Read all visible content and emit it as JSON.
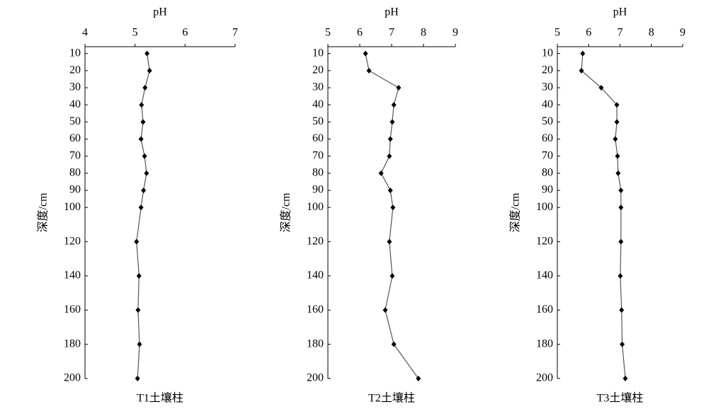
{
  "chart_data": [
    {
      "type": "line",
      "title": "T1土壤柱",
      "x_label": "pH",
      "y_label": "深度/cm",
      "categories": [
        10,
        20,
        30,
        40,
        50,
        60,
        70,
        80,
        90,
        100,
        120,
        140,
        160,
        180,
        200
      ],
      "values": [
        5.24,
        5.29,
        5.2,
        5.13,
        5.16,
        5.12,
        5.19,
        5.23,
        5.17,
        5.12,
        5.03,
        5.08,
        5.06,
        5.09,
        5.05
      ],
      "color": "#555555",
      "marker_color": "#000000",
      "xlim": [
        4,
        7
      ],
      "xticks": [
        4,
        5,
        6,
        7
      ],
      "ylim": [
        200,
        6
      ],
      "yticks": [
        10,
        20,
        30,
        40,
        50,
        60,
        70,
        80,
        90,
        100,
        120,
        140,
        160,
        180,
        200
      ]
    },
    {
      "type": "line",
      "title": "T2土壤柱",
      "x_label": "pH",
      "y_label": "深度/cm",
      "categories": [
        10,
        20,
        30,
        40,
        50,
        60,
        70,
        80,
        90,
        100,
        120,
        140,
        160,
        180,
        200
      ],
      "values": [
        6.18,
        6.29,
        7.22,
        7.07,
        7.02,
        6.96,
        6.93,
        6.67,
        6.96,
        7.04,
        6.93,
        7.02,
        6.8,
        7.07,
        7.84
      ],
      "color": "#555555",
      "marker_color": "#000000",
      "xlim": [
        5,
        9
      ],
      "xticks": [
        5,
        6,
        7,
        8,
        9
      ],
      "ylim": [
        200,
        6
      ],
      "yticks": [
        10,
        20,
        30,
        40,
        50,
        60,
        70,
        80,
        90,
        100,
        120,
        140,
        160,
        180,
        200
      ]
    },
    {
      "type": "line",
      "title": "T3土壤柱",
      "x_label": "pH",
      "y_label": "深度/cm",
      "categories": [
        10,
        20,
        30,
        40,
        50,
        60,
        70,
        80,
        90,
        100,
        120,
        140,
        160,
        180,
        200
      ],
      "values": [
        5.81,
        5.77,
        6.4,
        6.9,
        6.9,
        6.85,
        6.92,
        6.94,
        7.03,
        7.03,
        7.03,
        7.01,
        7.05,
        7.07,
        7.17
      ],
      "color": "#555555",
      "marker_color": "#000000",
      "xlim": [
        5,
        9
      ],
      "xticks": [
        5,
        6,
        7,
        8,
        9
      ],
      "ylim": [
        200,
        6
      ],
      "yticks": [
        10,
        20,
        30,
        40,
        50,
        60,
        70,
        80,
        90,
        100,
        120,
        140,
        160,
        180,
        200
      ]
    }
  ]
}
